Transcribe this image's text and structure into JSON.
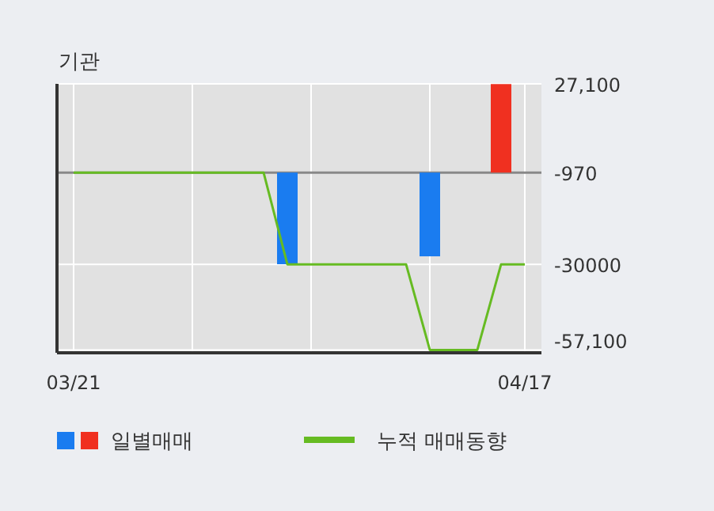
{
  "chart_data": {
    "type": "bar",
    "title": "기관",
    "categories": [
      "03/21",
      null,
      null,
      null,
      null,
      null,
      null,
      null,
      null,
      null,
      null,
      null,
      null,
      null,
      null,
      null,
      null,
      null,
      null,
      "04/17"
    ],
    "ylim": [
      -58000,
      27100
    ],
    "yticks": [
      {
        "value": 27100,
        "label": "27,100"
      },
      {
        "value": -970,
        "label": "-970"
      },
      {
        "value": -30000,
        "label": "-30000"
      },
      {
        "value": -57100,
        "label": "-57,100"
      }
    ],
    "series": [
      {
        "name": "일별매매",
        "base": [
          null,
          null,
          null,
          null,
          null,
          null,
          null,
          null,
          null,
          -970,
          null,
          null,
          null,
          null,
          null,
          -970,
          null,
          null,
          -970,
          null
        ],
        "values": [
          null,
          null,
          null,
          null,
          null,
          null,
          null,
          null,
          null,
          -29000,
          null,
          null,
          null,
          null,
          null,
          -26500,
          null,
          null,
          28000,
          null
        ],
        "colors": [
          null,
          null,
          null,
          null,
          null,
          null,
          null,
          null,
          null,
          "#1a7cf0",
          null,
          null,
          null,
          null,
          null,
          "#1a7cf0",
          null,
          null,
          "#f03020",
          null
        ]
      },
      {
        "name": "누적 매매동향",
        "type": "line",
        "color": "#66bb22",
        "values": [
          -970,
          -970,
          -970,
          -970,
          -970,
          -970,
          -970,
          -970,
          -970,
          -30000,
          -30000,
          -30000,
          -30000,
          -30000,
          -30000,
          -57100,
          -57100,
          -57100,
          -30000,
          -30000
        ]
      }
    ],
    "ref_lines": [
      {
        "axis": "y",
        "value": -970,
        "color": "#888888"
      }
    ],
    "grid": true,
    "legend": "bottom"
  }
}
